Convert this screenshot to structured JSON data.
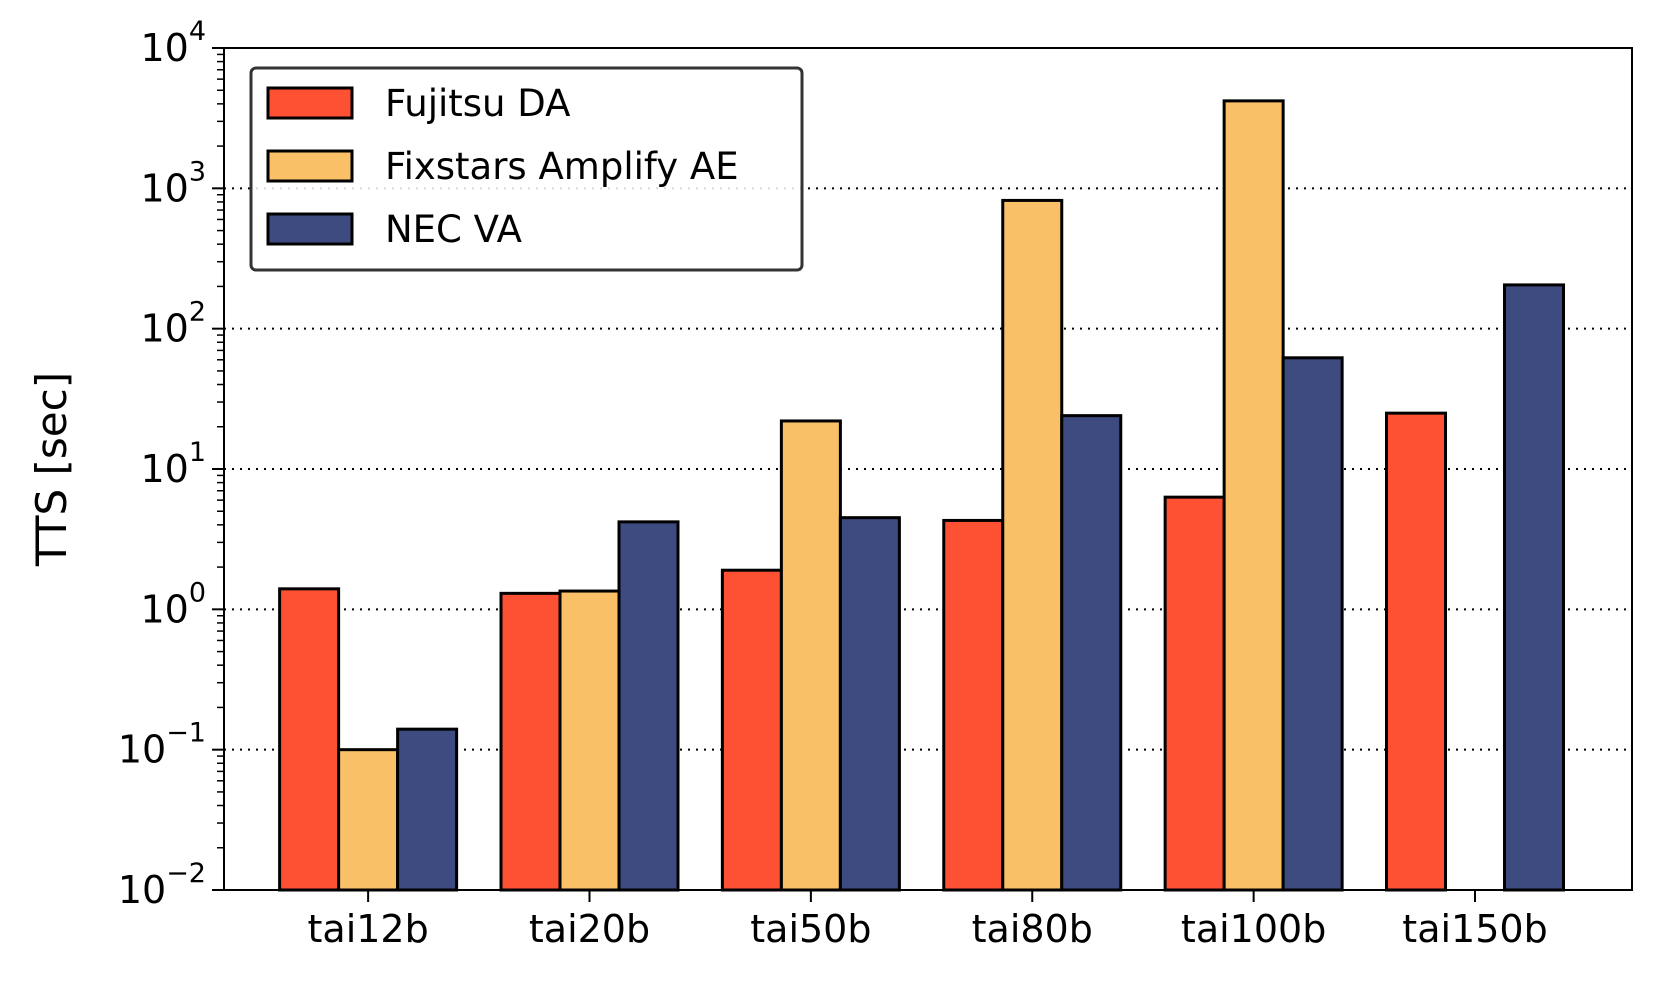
{
  "chart_data": {
    "type": "bar",
    "ylabel": "TTS [sec]",
    "yscale": "log",
    "ylim": [
      0.01,
      10000
    ],
    "yticks": [
      {
        "value": 0.01,
        "base": "10",
        "exp": "−2"
      },
      {
        "value": 0.1,
        "base": "10",
        "exp": "−1"
      },
      {
        "value": 1,
        "base": "10",
        "exp": "0"
      },
      {
        "value": 10,
        "base": "10",
        "exp": "1"
      },
      {
        "value": 100,
        "base": "10",
        "exp": "2"
      },
      {
        "value": 1000,
        "base": "10",
        "exp": "3"
      },
      {
        "value": 10000,
        "base": "10",
        "exp": "4"
      }
    ],
    "grid": "y-major-dotted",
    "legend_position": "top-left",
    "categories": [
      "tai12b",
      "tai20b",
      "tai50b",
      "tai80b",
      "tai100b",
      "tai150b"
    ],
    "series": [
      {
        "name": "Fujitsu DA",
        "color": "#fe5133",
        "values": [
          1.4,
          1.3,
          1.9,
          4.3,
          6.3,
          25
        ]
      },
      {
        "name": "Fixstars Amplify AE",
        "color": "#f9c068",
        "values": [
          0.1,
          1.35,
          22,
          820,
          4200,
          null
        ]
      },
      {
        "name": "NEC VA",
        "color": "#3d4b80",
        "values": [
          0.14,
          4.2,
          4.5,
          24,
          62,
          205
        ]
      }
    ]
  }
}
